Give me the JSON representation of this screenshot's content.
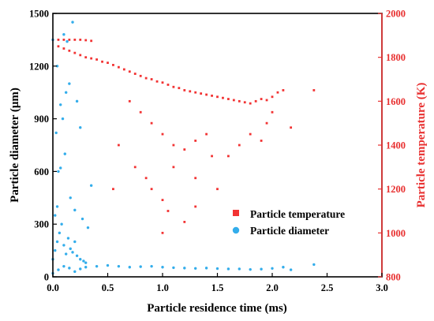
{
  "colors": {
    "temperature": "#f23333",
    "diameter": "#33adeb",
    "right_axis": "#e83030",
    "left_axis": "#000000"
  },
  "chart_data": {
    "type": "scatter",
    "title": "",
    "xlabel": "Particle residence time (ms)",
    "ylabel_left": "Particle diameter (μm)",
    "ylabel_right": "Particle temperature (K)",
    "x_range": [
      0.0,
      3.0
    ],
    "y_left_range": [
      0,
      1500
    ],
    "y_right_range": [
      800,
      2000
    ],
    "x_ticks": [
      "0.0",
      "0.5",
      "1.0",
      "1.5",
      "2.0",
      "2.5",
      "3.0"
    ],
    "y_left_ticks": [
      "0",
      "300",
      "600",
      "900",
      "1200",
      "1500"
    ],
    "y_right_ticks": [
      "800",
      "1000",
      "1200",
      "1400",
      "1600",
      "1800",
      "2000"
    ],
    "grid": false,
    "legend_position": "right-center",
    "series": [
      {
        "name": "Particle temperature",
        "marker": "square",
        "axis": "right",
        "points": [
          [
            0.0,
            1880
          ],
          [
            0.05,
            1880
          ],
          [
            0.1,
            1880
          ],
          [
            0.15,
            1880
          ],
          [
            0.2,
            1880
          ],
          [
            0.25,
            1880
          ],
          [
            0.3,
            1878
          ],
          [
            0.35,
            1875
          ],
          [
            0.05,
            1850
          ],
          [
            0.1,
            1840
          ],
          [
            0.15,
            1830
          ],
          [
            0.2,
            1820
          ],
          [
            0.25,
            1810
          ],
          [
            0.3,
            1800
          ],
          [
            0.35,
            1795
          ],
          [
            0.4,
            1790
          ],
          [
            0.45,
            1780
          ],
          [
            0.5,
            1775
          ],
          [
            0.55,
            1765
          ],
          [
            0.6,
            1755
          ],
          [
            0.65,
            1745
          ],
          [
            0.7,
            1735
          ],
          [
            0.75,
            1725
          ],
          [
            0.8,
            1715
          ],
          [
            0.85,
            1705
          ],
          [
            0.9,
            1700
          ],
          [
            0.95,
            1690
          ],
          [
            1.0,
            1685
          ],
          [
            1.05,
            1675
          ],
          [
            1.1,
            1665
          ],
          [
            1.15,
            1660
          ],
          [
            1.2,
            1650
          ],
          [
            1.25,
            1645
          ],
          [
            1.3,
            1640
          ],
          [
            1.35,
            1635
          ],
          [
            1.4,
            1630
          ],
          [
            1.45,
            1625
          ],
          [
            1.5,
            1620
          ],
          [
            1.55,
            1615
          ],
          [
            1.6,
            1610
          ],
          [
            1.65,
            1605
          ],
          [
            1.7,
            1600
          ],
          [
            1.75,
            1595
          ],
          [
            1.8,
            1590
          ],
          [
            1.85,
            1600
          ],
          [
            1.9,
            1610
          ],
          [
            1.95,
            1605
          ],
          [
            2.0,
            1620
          ],
          [
            2.05,
            1640
          ],
          [
            2.1,
            1650
          ],
          [
            0.7,
            1600
          ],
          [
            0.8,
            1550
          ],
          [
            0.9,
            1500
          ],
          [
            1.0,
            1450
          ],
          [
            1.1,
            1400
          ],
          [
            1.2,
            1380
          ],
          [
            1.3,
            1420
          ],
          [
            1.4,
            1450
          ],
          [
            0.75,
            1300
          ],
          [
            0.85,
            1250
          ],
          [
            0.9,
            1200
          ],
          [
            1.0,
            1150
          ],
          [
            1.05,
            1100
          ],
          [
            1.3,
            1120
          ],
          [
            1.5,
            1200
          ],
          [
            1.6,
            1350
          ],
          [
            1.7,
            1400
          ],
          [
            1.8,
            1450
          ],
          [
            1.9,
            1420
          ],
          [
            0.6,
            1400
          ],
          [
            0.55,
            1200
          ],
          [
            1.2,
            1050
          ],
          [
            1.0,
            1000
          ],
          [
            1.3,
            1250
          ],
          [
            1.1,
            1300
          ],
          [
            2.17,
            1480
          ],
          [
            2.38,
            1650
          ],
          [
            1.95,
            1500
          ],
          [
            2.0,
            1550
          ],
          [
            1.45,
            1350
          ]
        ]
      },
      {
        "name": "Particle diameter",
        "marker": "circle",
        "axis": "left",
        "points": [
          [
            0.0,
            20
          ],
          [
            0.05,
            40
          ],
          [
            0.1,
            60
          ],
          [
            0.15,
            50
          ],
          [
            0.2,
            30
          ],
          [
            0.25,
            45
          ],
          [
            0.3,
            55
          ],
          [
            0.4,
            60
          ],
          [
            0.5,
            65
          ],
          [
            0.6,
            60
          ],
          [
            0.7,
            55
          ],
          [
            0.8,
            58
          ],
          [
            0.9,
            60
          ],
          [
            1.0,
            55
          ],
          [
            1.1,
            52
          ],
          [
            1.2,
            50
          ],
          [
            1.3,
            48
          ],
          [
            1.4,
            50
          ],
          [
            1.5,
            47
          ],
          [
            1.6,
            45
          ],
          [
            1.7,
            45
          ],
          [
            1.8,
            42
          ],
          [
            1.9,
            44
          ],
          [
            2.0,
            48
          ],
          [
            2.1,
            55
          ],
          [
            2.17,
            40
          ],
          [
            2.38,
            70
          ],
          [
            0.0,
            100
          ],
          [
            0.02,
            150
          ],
          [
            0.04,
            200
          ],
          [
            0.06,
            250
          ],
          [
            0.08,
            300
          ],
          [
            0.1,
            180
          ],
          [
            0.12,
            130
          ],
          [
            0.14,
            220
          ],
          [
            0.16,
            160
          ],
          [
            0.18,
            140
          ],
          [
            0.2,
            200
          ],
          [
            0.22,
            120
          ],
          [
            0.25,
            100
          ],
          [
            0.28,
            90
          ],
          [
            0.3,
            80
          ],
          [
            0.02,
            350
          ],
          [
            0.04,
            400
          ],
          [
            0.05,
            600
          ],
          [
            0.07,
            620
          ],
          [
            0.1,
            1380
          ],
          [
            0.13,
            1340
          ],
          [
            0.18,
            1450
          ],
          [
            0.09,
            900
          ],
          [
            0.12,
            1050
          ],
          [
            0.25,
            850
          ],
          [
            0.03,
            820
          ],
          [
            0.07,
            980
          ],
          [
            0.15,
            1100
          ],
          [
            0.0,
            1350
          ],
          [
            0.04,
            1200
          ],
          [
            0.22,
            1000
          ],
          [
            0.11,
            700
          ],
          [
            0.16,
            450
          ],
          [
            0.2,
            380
          ],
          [
            0.27,
            330
          ],
          [
            0.32,
            280
          ],
          [
            0.35,
            520
          ]
        ]
      }
    ]
  },
  "legend": {
    "items": [
      {
        "label": "Particle temperature",
        "marker": "square"
      },
      {
        "label": "Particle diameter",
        "marker": "circle"
      }
    ]
  }
}
